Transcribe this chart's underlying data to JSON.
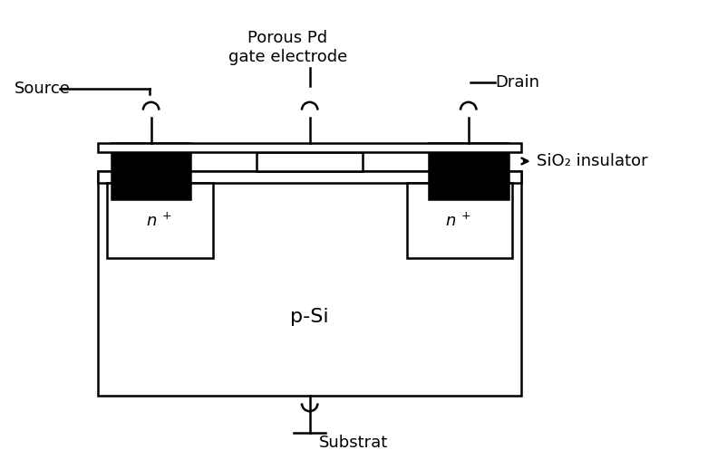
{
  "bg_color": "#ffffff",
  "labels": {
    "source": "Source",
    "gate": "Porous Pd\ngate electrode",
    "drain": "Drain",
    "sio2": "SiO₂ insulator",
    "psi": "p-Si",
    "n_left": "n",
    "n_right": "n",
    "substrat": "Substrat"
  },
  "colors": {
    "black": "#000000",
    "white": "#ffffff"
  },
  "lw": 1.8
}
